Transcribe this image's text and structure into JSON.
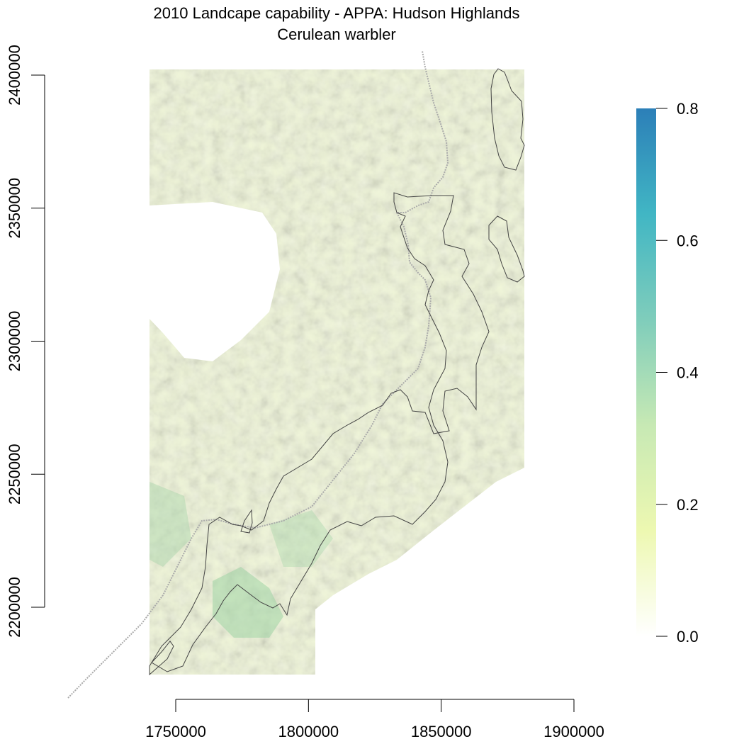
{
  "title_line1": "2010 Landcape capability - APPA: Hudson Highlands",
  "title_line2": "Cerulean warbler",
  "chart_data": {
    "type": "heatmap",
    "title": "2010 Landcape capability - APPA: Hudson Highlands",
    "subtitle": "Cerulean warbler",
    "x_axis": {
      "range": [
        1750000,
        1900000
      ],
      "ticks": [
        1750000,
        1800000,
        1850000,
        1900000
      ],
      "tick_labels": [
        "1750000",
        "1800000",
        "1850000",
        "1900000"
      ]
    },
    "y_axis": {
      "range": [
        2200000,
        2400000
      ],
      "ticks": [
        2200000,
        2250000,
        2300000,
        2350000,
        2400000
      ],
      "tick_labels": [
        "2200000",
        "2250000",
        "2300000",
        "2350000",
        "2400000"
      ]
    },
    "colorbar": {
      "range": [
        0,
        0.8
      ],
      "ticks": [
        0.0,
        0.2,
        0.4,
        0.6,
        0.8
      ],
      "tick_labels": [
        "0.0",
        "0.2",
        "0.4",
        "0.6",
        "0.8"
      ],
      "colors": [
        "#ffffff",
        "#edf8b1",
        "#c7e9b4",
        "#7fcdbb",
        "#41b6c4",
        "#2c7fb8"
      ]
    },
    "raster_color": "#e3efb8",
    "boundary_color": "#444444",
    "state_line_color": "#aaaaaa"
  }
}
